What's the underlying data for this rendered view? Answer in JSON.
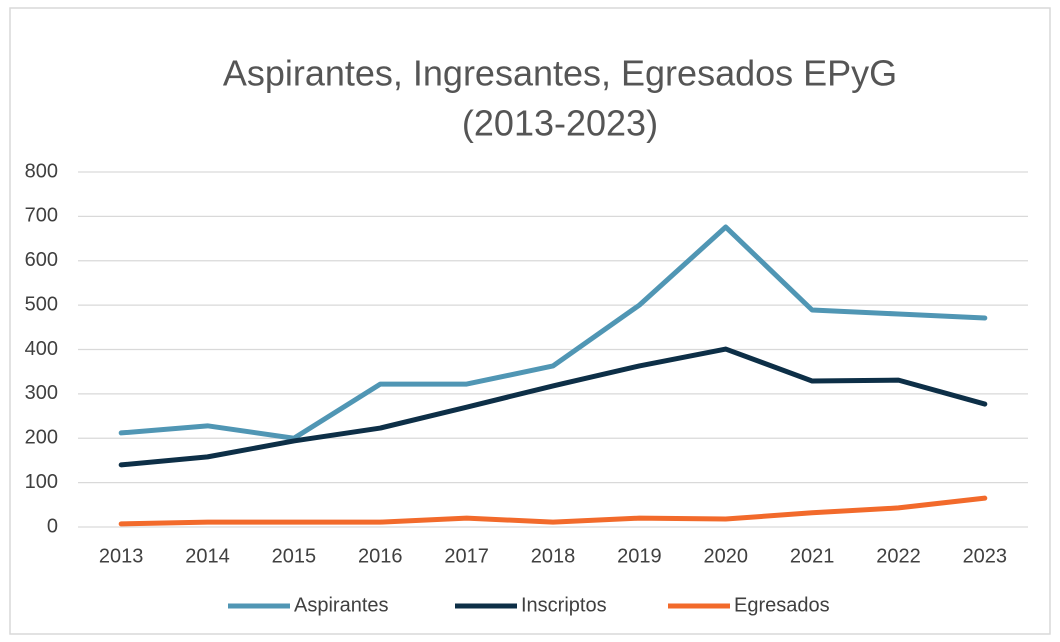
{
  "chart_data": {
    "type": "line",
    "title": [
      "Aspirantes, Ingresantes, Egresados EPyG",
      "(2013-2023)"
    ],
    "categories": [
      "2013",
      "2014",
      "2015",
      "2016",
      "2017",
      "2018",
      "2019",
      "2020",
      "2021",
      "2022",
      "2023"
    ],
    "series": [
      {
        "name": "Aspirantes",
        "color": "#5096b4",
        "values": [
          212,
          228,
          200,
          322,
          322,
          363,
          500,
          676,
          489,
          480,
          471
        ]
      },
      {
        "name": "Inscriptos",
        "color": "#0d2f47",
        "values": [
          140,
          158,
          194,
          223,
          270,
          318,
          363,
          401,
          329,
          331,
          277
        ]
      },
      {
        "name": "Egresados",
        "color": "#f26a2b",
        "values": [
          7,
          11,
          11,
          11,
          20,
          11,
          20,
          18,
          32,
          43,
          65
        ]
      }
    ],
    "ylim": [
      0,
      800
    ],
    "yticks": [
      0,
      100,
      200,
      300,
      400,
      500,
      600,
      700,
      800
    ],
    "grid": true,
    "legend": "bottom"
  }
}
